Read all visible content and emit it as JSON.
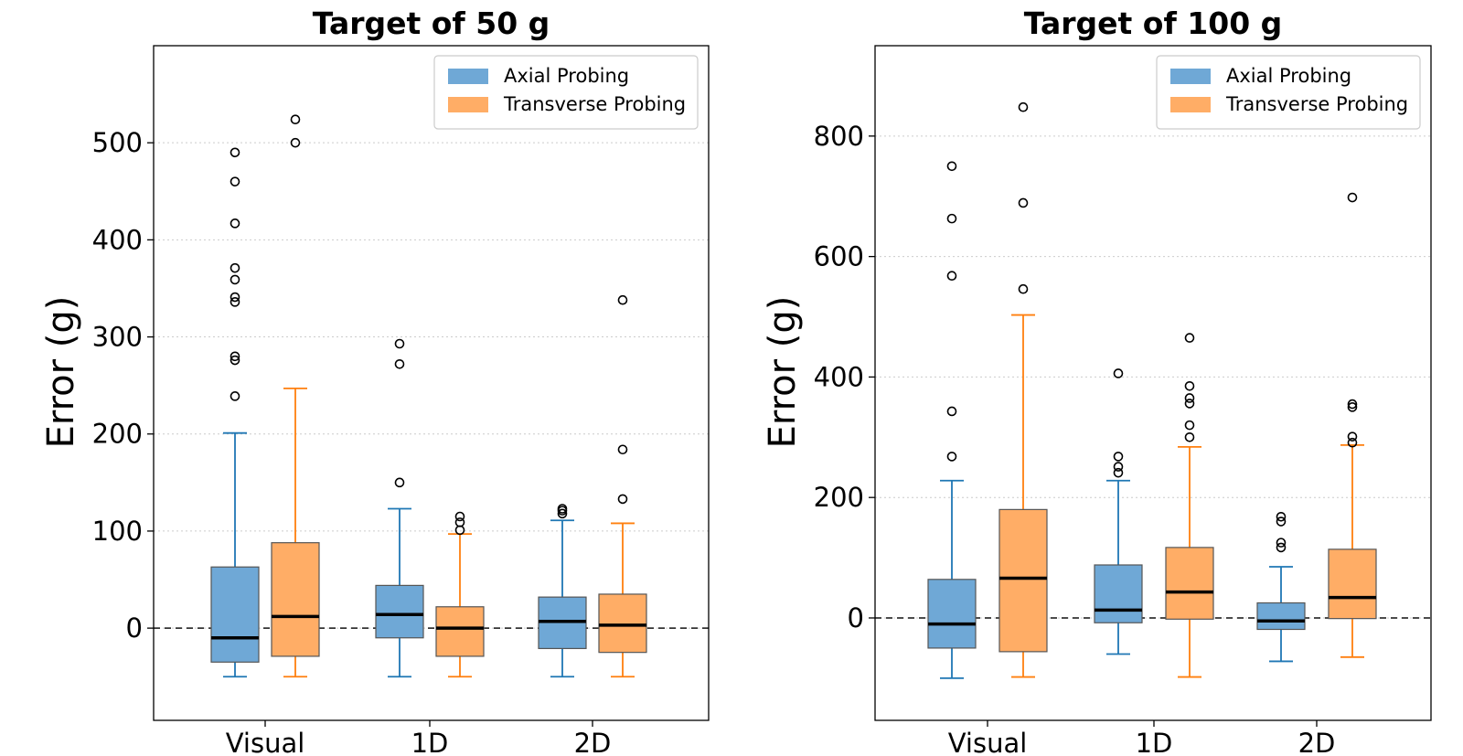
{
  "chart_data": [
    {
      "type": "box",
      "title": "Target of 50 g",
      "ylabel": "Error (g)",
      "xlabel": "",
      "categories": [
        "Visual",
        "1D",
        "2D"
      ],
      "yticks": [
        0,
        100,
        200,
        300,
        400,
        500
      ],
      "ylim": [
        -95,
        600
      ],
      "grid": "y-dotted",
      "reference_line": 0,
      "legend": {
        "position": "top-right",
        "entries": [
          "Axial Probing",
          "Transverse Probing"
        ]
      },
      "series": [
        {
          "name": "Axial Probing",
          "color": "#6fa8d6",
          "whisker_color": "#1f77b4",
          "boxes": [
            {
              "whisker_low": -50,
              "q1": -35,
              "median": -10,
              "q3": 63,
              "whisker_high": 201,
              "outliers": [
                239,
                276,
                280,
                336,
                341,
                359,
                371,
                417,
                460,
                490
              ]
            },
            {
              "whisker_low": -50,
              "q1": -10,
              "median": 14,
              "q3": 44,
              "whisker_high": 123,
              "outliers": [
                150,
                272,
                293
              ]
            },
            {
              "whisker_low": -50,
              "q1": -21,
              "median": 7,
              "q3": 32,
              "whisker_high": 111,
              "outliers": [
                118,
                121,
                123
              ]
            }
          ]
        },
        {
          "name": "Transverse Probing",
          "color": "#ffad66",
          "whisker_color": "#ff7f0e",
          "boxes": [
            {
              "whisker_low": -50,
              "q1": -29,
              "median": 12,
              "q3": 88,
              "whisker_high": 247,
              "outliers": [
                500,
                524
              ]
            },
            {
              "whisker_low": -50,
              "q1": -29,
              "median": 0,
              "q3": 22,
              "whisker_high": 97,
              "outliers": [
                101,
                109,
                115
              ]
            },
            {
              "whisker_low": -50,
              "q1": -25,
              "median": 3,
              "q3": 35,
              "whisker_high": 108,
              "outliers": [
                133,
                184,
                338
              ]
            }
          ]
        }
      ]
    },
    {
      "type": "box",
      "title": "Target of 100 g",
      "ylabel": "Error (g)",
      "xlabel": "",
      "categories": [
        "Visual",
        "1D",
        "2D"
      ],
      "yticks": [
        0,
        200,
        400,
        600,
        800
      ],
      "ylim": [
        -170,
        950
      ],
      "grid": "y-dotted",
      "reference_line": 0,
      "legend": {
        "position": "top-right",
        "entries": [
          "Axial Probing",
          "Transverse Probing"
        ]
      },
      "series": [
        {
          "name": "Axial Probing",
          "color": "#6fa8d6",
          "whisker_color": "#1f77b4",
          "boxes": [
            {
              "whisker_low": -100,
              "q1": -50,
              "median": -10,
              "q3": 64,
              "whisker_high": 228,
              "outliers": [
                268,
                343,
                568,
                663,
                750
              ]
            },
            {
              "whisker_low": -60,
              "q1": -8,
              "median": 13,
              "q3": 88,
              "whisker_high": 228,
              "outliers": [
                241,
                251,
                268,
                406
              ]
            },
            {
              "whisker_low": -72,
              "q1": -19,
              "median": -5,
              "q3": 25,
              "whisker_high": 85,
              "outliers": [
                117,
                125,
                160,
                168
              ]
            }
          ]
        },
        {
          "name": "Transverse Probing",
          "color": "#ffad66",
          "whisker_color": "#ff7f0e",
          "boxes": [
            {
              "whisker_low": -98,
              "q1": -56,
              "median": 66,
              "q3": 180,
              "whisker_high": 503,
              "outliers": [
                546,
                689,
                848
              ]
            },
            {
              "whisker_low": -98,
              "q1": -2,
              "median": 43,
              "q3": 117,
              "whisker_high": 284,
              "outliers": [
                300,
                320,
                356,
                365,
                385,
                465
              ]
            },
            {
              "whisker_low": -65,
              "q1": -1,
              "median": 34,
              "q3": 114,
              "whisker_high": 287,
              "outliers": [
                291,
                301,
                350,
                355,
                698
              ]
            }
          ]
        }
      ]
    }
  ]
}
